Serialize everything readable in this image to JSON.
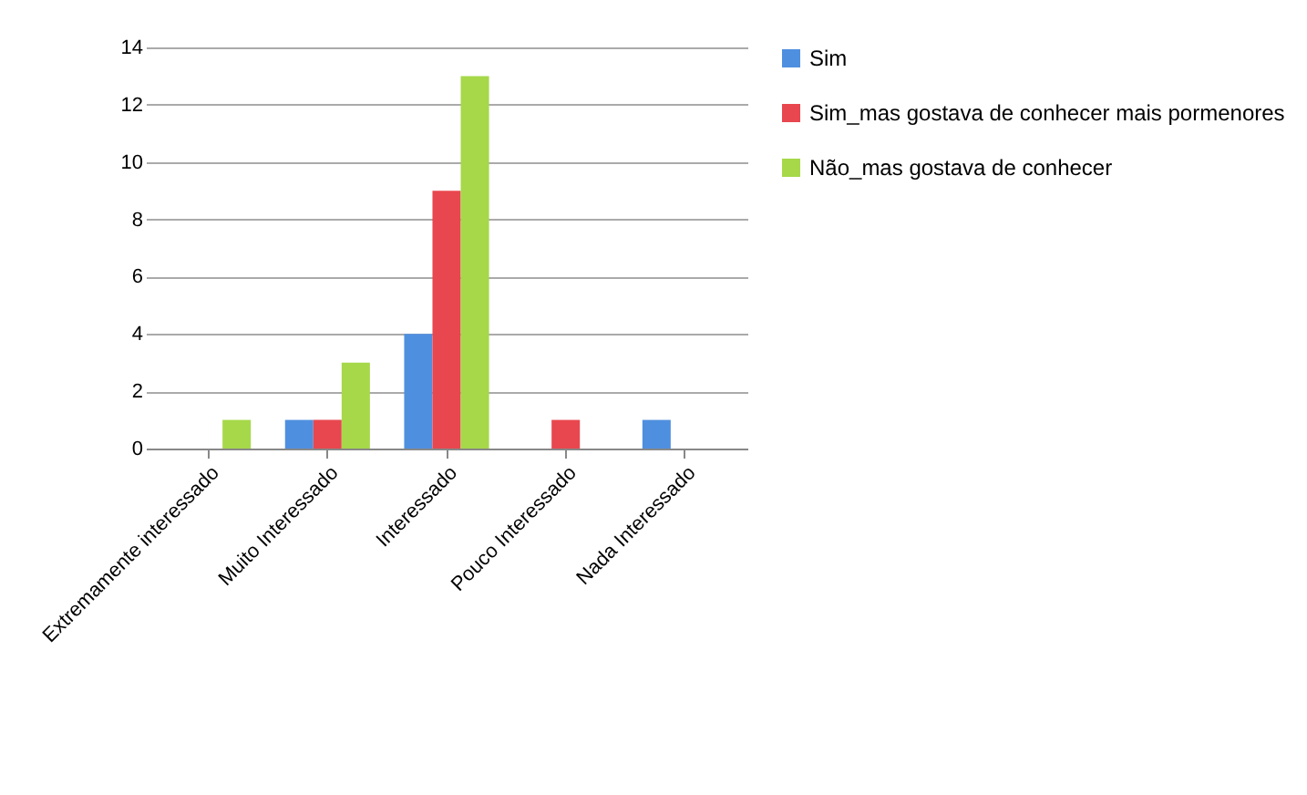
{
  "chart_data": {
    "type": "bar",
    "categories": [
      "Extremamente interessado",
      "Muito Interessado",
      "Interessado",
      "Pouco Interessado",
      "Nada Interessado"
    ],
    "series": [
      {
        "name": "Sim",
        "color": "#4f8fdf",
        "values": [
          0,
          1,
          4,
          0,
          1
        ]
      },
      {
        "name": "Sim_mas gostava de conhecer mais pormenores",
        "color": "#e8474f",
        "values": [
          0,
          1,
          9,
          1,
          0
        ]
      },
      {
        "name": "Não_mas gostava de conhecer",
        "color": "#a6d84a",
        "values": [
          1,
          3,
          13,
          0,
          0
        ]
      }
    ],
    "ylim": [
      0,
      14
    ],
    "yticks": [
      0,
      2,
      4,
      6,
      8,
      10,
      12,
      14
    ],
    "grid": "y",
    "legend": "right"
  }
}
